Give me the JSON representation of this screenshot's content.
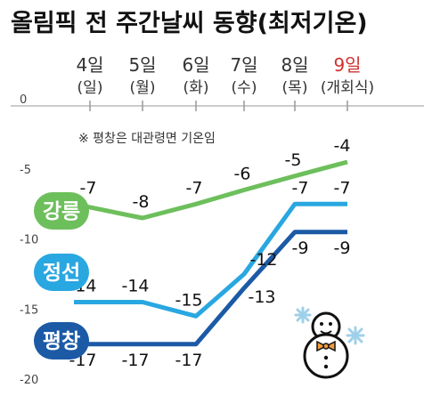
{
  "chart_data": {
    "type": "line",
    "title": "올림픽 전 주간날씨 동향(최저기온)",
    "note": "※ 평창은 대관령면 기온임",
    "categories": [
      "4일",
      "5일",
      "6일",
      "7일",
      "8일",
      "9일"
    ],
    "weekdays": [
      "(일)",
      "(월)",
      "(화)",
      "(수)",
      "(목)",
      "(개회식)"
    ],
    "highlight_index": 5,
    "y_ticks": [
      "0",
      "-5",
      "-10",
      "-15",
      "-20"
    ],
    "ylim": [
      -20,
      0
    ],
    "series": [
      {
        "name": "강릉",
        "color": "#6dbf5c",
        "values": [
          -7,
          -8,
          -7,
          -6,
          -5,
          -4
        ],
        "labels": [
          "-7",
          "-8",
          "-7",
          "-6",
          "-5",
          "-4"
        ]
      },
      {
        "name": "정선",
        "color": "#29a7e1",
        "values": [
          -14,
          -14,
          -15,
          -12,
          -7,
          -7
        ],
        "labels": [
          "-14",
          "-14",
          "-15",
          "-12",
          "-7",
          "-7"
        ]
      },
      {
        "name": "평창",
        "color": "#1c5aa6",
        "values": [
          -17,
          -17,
          -17,
          -13,
          -9,
          -9
        ],
        "labels": [
          "-17",
          "-17",
          "-17",
          "-13",
          "-9",
          "-9"
        ]
      }
    ],
    "accent_color": "#d32f2f",
    "grid": false
  },
  "icons": {
    "mascot": "snowman-icon",
    "decoration": "snowflake-icon"
  }
}
